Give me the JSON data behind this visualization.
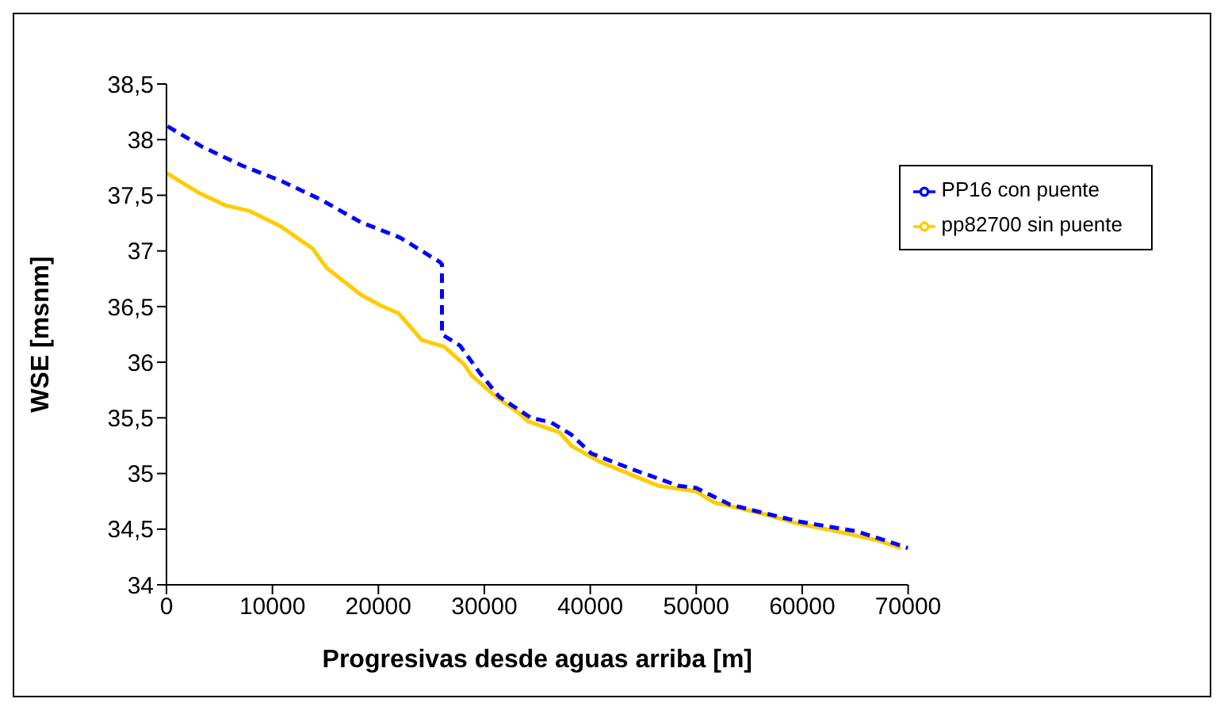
{
  "chart_data": {
    "type": "line",
    "xlabel": "Progresivas desde aguas arriba [m]",
    "ylabel": "WSE [msnm]",
    "xlim": [
      0,
      70000
    ],
    "xticks": [
      0,
      10000,
      20000,
      30000,
      40000,
      50000,
      60000,
      70000
    ],
    "ylim": [
      34,
      38.5
    ],
    "yticks": [
      34,
      {
        "value": 34.5,
        "label": "34,5"
      },
      35,
      {
        "value": 35.5,
        "label": "35,5"
      },
      36,
      {
        "value": 36.5,
        "label": "36,5"
      },
      37,
      {
        "value": 37.5,
        "label": "37,5"
      },
      38,
      {
        "value": 38.5,
        "label": "38,5"
      }
    ],
    "grid": false,
    "legend": "top right",
    "marker": "none",
    "series": [
      {
        "name": "pp82700 sin puente",
        "color": "#ffcc00",
        "line_style": "solid",
        "x": [
          0,
          3100,
          5550,
          7800,
          10800,
          13800,
          15100,
          18300,
          20200,
          21900,
          24100,
          26200,
          28100,
          28800,
          31100,
          33300,
          34100,
          37100,
          38200,
          40800,
          44600,
          46400,
          50000,
          51700,
          55800,
          59600,
          63300,
          67100,
          69300
        ],
        "values": [
          37.7,
          37.52,
          37.41,
          37.36,
          37.22,
          37.02,
          36.85,
          36.61,
          36.51,
          36.44,
          36.2,
          36.14,
          35.98,
          35.88,
          35.69,
          35.54,
          35.47,
          35.37,
          35.25,
          35.11,
          34.96,
          34.89,
          34.84,
          34.74,
          34.65,
          34.55,
          34.48,
          34.4,
          34.33
        ]
      },
      {
        "name": "PP16 con puente",
        "color": "#0000ff",
        "line_style": "dashed",
        "x": [
          100,
          3300,
          7050,
          10800,
          14600,
          18300,
          22050,
          25800,
          26000,
          26000,
          27700,
          29600,
          31400,
          34400,
          36300,
          38200,
          40100,
          44200,
          48300,
          50000,
          53200,
          59600,
          65200,
          70000
        ],
        "values": [
          38.12,
          37.94,
          37.77,
          37.63,
          37.46,
          37.26,
          37.12,
          36.9,
          36.88,
          36.25,
          36.15,
          35.9,
          35.69,
          35.5,
          35.46,
          35.35,
          35.18,
          35.03,
          34.89,
          34.87,
          34.72,
          34.57,
          34.48,
          34.33
        ]
      }
    ]
  }
}
